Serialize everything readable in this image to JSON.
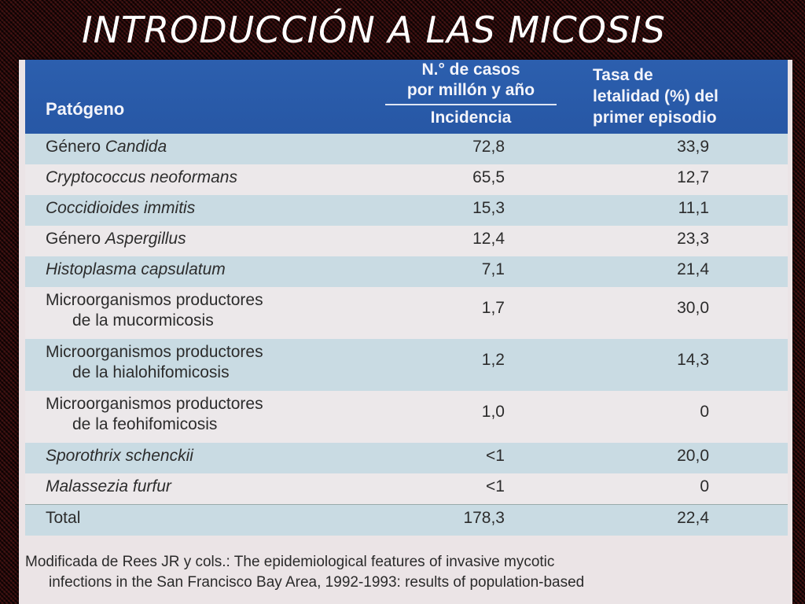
{
  "slide": {
    "title": "INTRODUCCIÓN A LAS MICOSIS"
  },
  "table": {
    "headers": {
      "pathogen": "Patógeno",
      "cases_line1": "N.° de casos",
      "cases_line2": "por millón y año",
      "incidence": "Incidencia",
      "letality_line1": "Tasa de",
      "letality_line2": "letalidad (%) del",
      "letality_line3": "primer episodio"
    },
    "rows": [
      {
        "pre": "Género ",
        "italic": "Candida",
        "line2": "",
        "incidence": "72,8",
        "letality": "33,9"
      },
      {
        "pre": "",
        "italic": "Cryptococcus neoformans",
        "line2": "",
        "incidence": "65,5",
        "letality": "12,7"
      },
      {
        "pre": "",
        "italic": "Coccidioides immitis",
        "line2": "",
        "incidence": "15,3",
        "letality": "11,1"
      },
      {
        "pre": "Género ",
        "italic": "Aspergillus",
        "line2": "",
        "incidence": "12,4",
        "letality": "23,3"
      },
      {
        "pre": "",
        "italic": "Histoplasma capsulatum",
        "line2": "",
        "incidence": "7,1",
        "letality": "21,4"
      },
      {
        "pre": "Microorganismos productores",
        "italic": "",
        "line2": "de la mucormicosis",
        "incidence": "1,7",
        "letality": "30,0"
      },
      {
        "pre": "Microorganismos productores",
        "italic": "",
        "line2": "de la hialohifomicosis",
        "incidence": "1,2",
        "letality": "14,3"
      },
      {
        "pre": "Microorganismos productores",
        "italic": "",
        "line2": "de la feohifomicosis",
        "incidence": "1,0",
        "letality": "0"
      },
      {
        "pre": "",
        "italic": "Sporothrix schenckii",
        "line2": "",
        "incidence": "<1",
        "letality": "20,0"
      },
      {
        "pre": "",
        "italic": "Malassezia furfur",
        "line2": "",
        "incidence": "<1",
        "letality": "0"
      },
      {
        "pre": "Total",
        "italic": "",
        "line2": "",
        "incidence": "178,3",
        "letality": "22,4"
      }
    ]
  },
  "footnote": {
    "line1": "Modificada de Rees JR y cols.: The epidemiological features of invasive mycotic",
    "line2": "infections in the San Francisco Bay Area, 1992-1993: results of population-based"
  },
  "colors": {
    "header_blue": "#2c5fae",
    "row_blue": "#c9dbe3",
    "row_pink": "#ece8ea",
    "background": "#2a0d0d"
  }
}
